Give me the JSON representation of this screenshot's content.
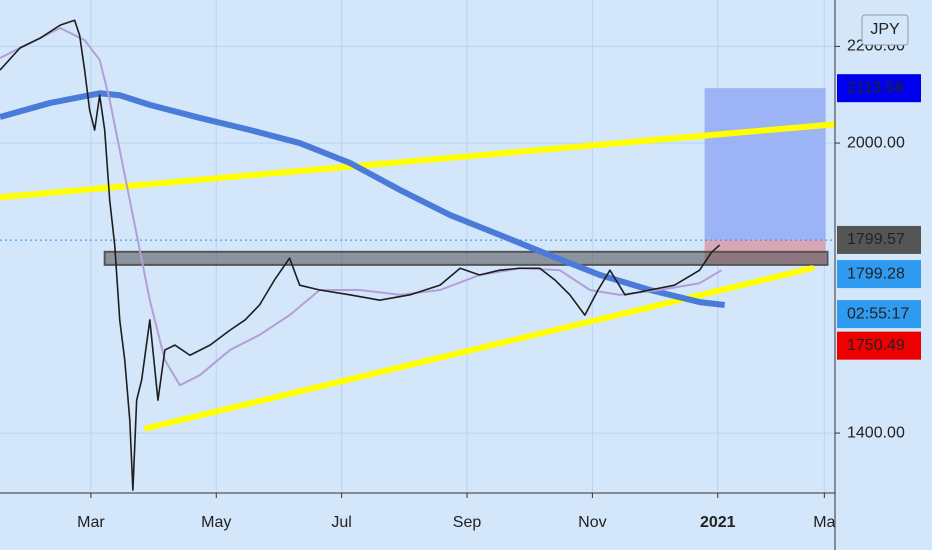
{
  "chart_data": {
    "type": "line",
    "currency": "JPY",
    "xlim": [
      -1.45,
      11.87
    ],
    "ylim": [
      1276,
      2296
    ],
    "xticks": [
      {
        "value": 0,
        "label": "Mar"
      },
      {
        "value": 2,
        "label": "May"
      },
      {
        "value": 4,
        "label": "Jul"
      },
      {
        "value": 6,
        "label": "Sep"
      },
      {
        "value": 8,
        "label": "Nov"
      },
      {
        "value": 10,
        "label": "2021"
      },
      {
        "value": 11.7,
        "label": "Ma"
      }
    ],
    "yticks": [
      {
        "value": 2200,
        "label": "2200.00"
      },
      {
        "value": 2000,
        "label": "2000.00"
      },
      {
        "value": 1400,
        "label": "1400.00"
      }
    ],
    "grid": true,
    "series": [
      {
        "color": "#4a7bd9",
        "x": [
          -1.45,
          -0.65,
          0.14,
          0.46,
          0.94,
          1.74,
          2.54,
          3.33,
          4.13,
          4.93,
          5.73,
          6.52,
          7.32,
          8.12,
          8.92,
          9.71,
          10.11
        ],
        "values": [
          2054,
          2083,
          2103,
          2099,
          2079,
          2052,
          2027,
          2000,
          1959,
          1903,
          1851,
          1810,
          1768,
          1727,
          1696,
          1671,
          1665
        ]
      },
      {
        "color": "#b39fd6",
        "x": [
          -1.45,
          -0.49,
          -0.1,
          0.14,
          0.3,
          0.62,
          0.94,
          1.18,
          1.42,
          1.74,
          2.22,
          2.69,
          3.17,
          3.65,
          4.29,
          4.93,
          5.57,
          6.2,
          6.84,
          7.48,
          7.96,
          8.44,
          9.07,
          9.71,
          10.06
        ],
        "values": [
          2176,
          2238,
          2213,
          2172,
          2089,
          1882,
          1675,
          1551,
          1499,
          1520,
          1572,
          1603,
          1644,
          1696,
          1696,
          1686,
          1696,
          1727,
          1741,
          1737,
          1696,
          1686,
          1696,
          1710,
          1737
        ]
      },
      {
        "color": "#1e1e1e",
        "x": [
          -1.45,
          -1.13,
          -0.81,
          -0.49,
          -0.26,
          -0.18,
          -0.1,
          -0.02,
          0.06,
          0.14,
          0.22,
          0.3,
          0.38,
          0.46,
          0.54,
          0.62,
          0.67,
          0.73,
          0.81,
          0.94,
          1.07,
          1.18,
          1.34,
          1.58,
          1.9,
          2.22,
          2.46,
          2.69,
          2.93,
          3.17,
          3.33,
          3.65,
          4.13,
          4.61,
          5.09,
          5.57,
          5.89,
          6.2,
          6.52,
          6.84,
          7.16,
          7.4,
          7.64,
          7.88,
          8.09,
          8.28,
          8.52,
          8.92,
          9.31,
          9.71,
          9.9,
          10.03
        ],
        "values": [
          2151,
          2197,
          2217,
          2244,
          2254,
          2223,
          2151,
          2068,
          2027,
          2099,
          2027,
          1882,
          1789,
          1634,
          1551,
          1427,
          1282,
          1468,
          1510,
          1634,
          1468,
          1572,
          1582,
          1561,
          1582,
          1613,
          1634,
          1665,
          1717,
          1762,
          1706,
          1696,
          1686,
          1675,
          1686,
          1706,
          1741,
          1727,
          1737,
          1741,
          1741,
          1717,
          1686,
          1644,
          1696,
          1737,
          1686,
          1696,
          1706,
          1737,
          1774,
          1789
        ]
      }
    ],
    "trend_lines": [
      {
        "color": "#ffff00",
        "x": [
          -1.45,
          11.87
        ],
        "values": [
          1888,
          2039
        ]
      },
      {
        "color": "#ffff00",
        "x": [
          0.89,
          11.5
        ],
        "values": [
          1410,
          1741
        ]
      }
    ],
    "zone": {
      "x": [
        0.22,
        11.75
      ],
      "values": [
        1775,
        1748
      ]
    },
    "position": {
      "x": [
        9.79,
        11.72
      ],
      "target": 2113.58,
      "entry": 1799.57,
      "stop": 1750.49
    },
    "last_price": 1799.28,
    "countdown": "02:55:17"
  }
}
